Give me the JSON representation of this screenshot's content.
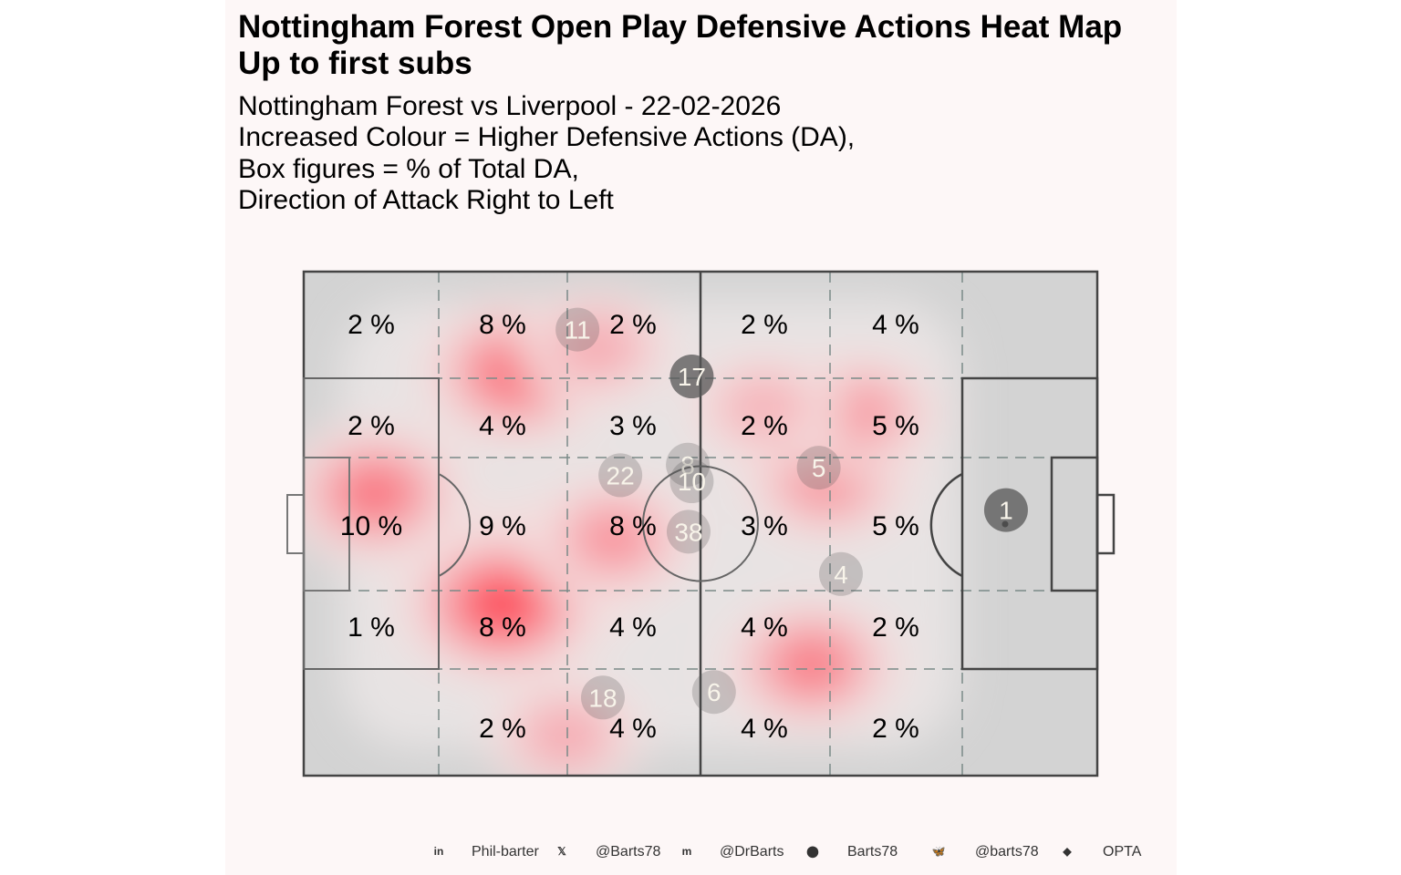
{
  "title": "Nottingham Forest Open Play Defensive Actions Heat Map",
  "title_line2": "Up to first subs",
  "subtitle_lines": [
    "Nottingham Forest vs Liverpool - 22-02-2026",
    "Increased Colour = Higher Defensive Actions (DA),",
    "Box figures = % of Total DA,",
    "Direction of Attack Right to Left"
  ],
  "colors": {
    "pitch": "#d3d3d3",
    "heat_low": "#e9e9e9",
    "heat_high": "#ff1f2d",
    "player_marker": "#555555",
    "background": "#fdf7f7"
  },
  "chart_data": {
    "type": "heatmap",
    "zones_grid": {
      "columns": 6,
      "rows": 5,
      "labels": [
        [
          "2 %",
          "8 %",
          "2 %",
          "2 %",
          "4 %",
          ""
        ],
        [
          "2 %",
          "4 %",
          "3 %",
          "2 %",
          "5 %",
          ""
        ],
        [
          "10 %",
          "9 %",
          "8 %",
          "3 %",
          "5 %",
          ""
        ],
        [
          "1 %",
          "8 %",
          "4 %",
          "4 %",
          "2 %",
          ""
        ],
        [
          "",
          "2 %",
          "4 %",
          "4 %",
          "2 %",
          ""
        ]
      ]
    },
    "player_positions": [
      {
        "number": "11",
        "x": 0.345,
        "y": 0.115
      },
      {
        "number": "17",
        "x": 0.489,
        "y": 0.208
      },
      {
        "number": "8",
        "x": 0.484,
        "y": 0.383
      },
      {
        "number": "10",
        "x": 0.489,
        "y": 0.416
      },
      {
        "number": "22",
        "x": 0.399,
        "y": 0.404
      },
      {
        "number": "38",
        "x": 0.485,
        "y": 0.516
      },
      {
        "number": "5",
        "x": 0.649,
        "y": 0.389
      },
      {
        "number": "4",
        "x": 0.677,
        "y": 0.6
      },
      {
        "number": "1",
        "x": 0.885,
        "y": 0.473
      },
      {
        "number": "18",
        "x": 0.377,
        "y": 0.845
      },
      {
        "number": "6",
        "x": 0.517,
        "y": 0.834
      }
    ],
    "heat_blobs": [
      {
        "x": 0.09,
        "y": 0.44,
        "level": 0.7
      },
      {
        "x": 0.27,
        "y": 0.2,
        "level": 0.8
      },
      {
        "x": 0.3,
        "y": 0.6,
        "level": 0.85
      },
      {
        "x": 0.25,
        "y": 0.66,
        "level": 0.95
      },
      {
        "x": 0.37,
        "y": 0.15,
        "level": 0.35
      },
      {
        "x": 0.39,
        "y": 0.53,
        "level": 0.5
      },
      {
        "x": 0.66,
        "y": 0.41,
        "level": 0.55
      },
      {
        "x": 0.7,
        "y": 0.28,
        "level": 0.45
      },
      {
        "x": 0.64,
        "y": 0.78,
        "level": 0.65
      },
      {
        "x": 0.33,
        "y": 0.92,
        "level": 0.35
      },
      {
        "x": 0.58,
        "y": 0.27,
        "level": 0.3
      }
    ]
  },
  "footer": [
    {
      "icon": "linkedin-icon",
      "glyph": "in",
      "text": "Phil-barter"
    },
    {
      "icon": "x-icon",
      "glyph": "𝕏",
      "text": "@Barts78"
    },
    {
      "icon": "mastodon-icon",
      "glyph": "m",
      "text": "@DrBarts"
    },
    {
      "icon": "github-icon",
      "glyph": "⬤",
      "text": "Barts78"
    },
    {
      "icon": "bluesky-icon",
      "glyph": "🦋",
      "text": "@barts78"
    },
    {
      "icon": "dropbox-icon",
      "glyph": "◆",
      "text": "OPTA"
    }
  ]
}
